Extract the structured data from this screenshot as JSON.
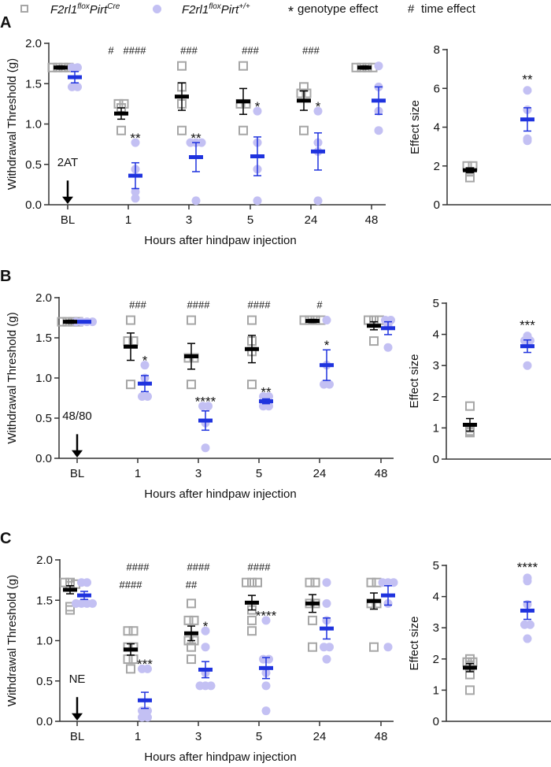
{
  "legend": {
    "series1": {
      "gene": "F2rl1",
      "gene_sup": "flox",
      "driver": "Pirt",
      "driver_sup": "Cre",
      "marker": "open-square",
      "color": "#a6a6a6"
    },
    "series2": {
      "gene": "F2rl1",
      "gene_sup": "flox",
      "driver": "Pirt",
      "driver_sup": "+/+",
      "marker": "filled-circle",
      "color": "#c3c0f3"
    },
    "genotype": {
      "symbol": "*",
      "label": "genotype effect"
    },
    "time": {
      "symbol": "#",
      "label": "time effect"
    }
  },
  "colors": {
    "cre_mean": "#000000",
    "wt_mean": "#1f33de",
    "cre_points": "#a6a6a6",
    "wt_points": "#c3c0f3",
    "wt_hash": "#1f33de"
  },
  "chart_data": [
    {
      "panel": "A",
      "type": "scatter",
      "stimulus": "2AT",
      "ylabel": "Withdrawal Threshold (g)",
      "xlabel": "Hours after hindpaw injection",
      "categories": [
        "BL",
        "1",
        "3",
        "5",
        "24",
        "48"
      ],
      "ylim": [
        0,
        2
      ],
      "yticks": [
        "0.0",
        "0.5",
        "1.0",
        "1.5",
        "2.0"
      ],
      "series": [
        {
          "name": "F2rl1floxPirtCre",
          "means": [
            1.7,
            1.13,
            1.34,
            1.28,
            1.29,
            1.7
          ],
          "sem": [
            0.02,
            0.07,
            0.17,
            0.16,
            0.12,
            0.02
          ],
          "points": [
            [
              1.7,
              1.7,
              1.7,
              1.7
            ],
            [
              1.25,
              1.25,
              1.2,
              0.92
            ],
            [
              1.72,
              1.46,
              1.25,
              0.92
            ],
            [
              1.72,
              1.25,
              1.25,
              0.92
            ],
            [
              1.46,
              1.38,
              1.38,
              0.92
            ],
            [
              1.7,
              1.7,
              1.7,
              1.7
            ]
          ]
        },
        {
          "name": "F2rl1floxPirt+/+",
          "means": [
            1.58,
            0.36,
            0.59,
            0.6,
            0.66,
            1.29
          ],
          "sem": [
            0.07,
            0.16,
            0.18,
            0.24,
            0.23,
            0.17
          ],
          "points": [
            [
              1.7,
              1.7,
              1.46,
              1.46
            ],
            [
              0.77,
              0.44,
              0.16,
              0.08
            ],
            [
              0.77,
              0.77,
              0.77,
              0.05
            ],
            [
              1.16,
              0.77,
              0.44,
              0.05
            ],
            [
              1.16,
              0.77,
              0.66,
              0.05
            ],
            [
              1.72,
              1.46,
              1.16,
              0.92
            ]
          ]
        }
      ],
      "annotations": {
        "time_cre": [
          "",
          "#",
          "",
          "",
          "",
          ""
        ],
        "time_wt": [
          "",
          "####",
          "###",
          "###",
          "###",
          ""
        ],
        "genotype": [
          "",
          "**",
          "**",
          "*",
          "*",
          ""
        ]
      }
    },
    {
      "panel": "A-effect",
      "type": "scatter",
      "ylabel": "Effect size",
      "ylim": [
        0,
        8
      ],
      "yticks": [
        "0",
        "2",
        "4",
        "6",
        "8"
      ],
      "series": [
        {
          "name": "F2rl1floxPirtCre",
          "mean": 1.78,
          "sem": 0.12,
          "points": [
            2.0,
            2.0,
            1.7,
            1.4
          ]
        },
        {
          "name": "F2rl1floxPirt+/+",
          "mean": 4.4,
          "sem": 0.6,
          "points": [
            5.9,
            4.9,
            3.4,
            3.3
          ]
        }
      ],
      "annotation": "**"
    },
    {
      "panel": "B",
      "type": "scatter",
      "stimulus": "48/80",
      "ylabel": "Withdrawal Threshold (g)",
      "xlabel": "Hours after hindpaw injection",
      "categories": [
        "BL",
        "1",
        "3",
        "5",
        "24",
        "48"
      ],
      "ylim": [
        0,
        2
      ],
      "yticks": [
        "0.0",
        "0.5",
        "1.0",
        "1.5",
        "2.0"
      ],
      "series": [
        {
          "name": "F2rl1floxPirtCre",
          "means": [
            1.7,
            1.39,
            1.27,
            1.36,
            1.71,
            1.65
          ],
          "sem": [
            0.02,
            0.17,
            0.16,
            0.17,
            0.02,
            0.05
          ],
          "points": [
            [
              1.7,
              1.7,
              1.7,
              1.7
            ],
            [
              1.72,
              1.46,
              1.46,
              0.92
            ],
            [
              1.72,
              1.25,
              1.25,
              0.92
            ],
            [
              1.72,
              1.46,
              1.33,
              0.92
            ],
            [
              1.72,
              1.72,
              1.72,
              1.72
            ],
            [
              1.72,
              1.72,
              1.72,
              1.46
            ]
          ]
        },
        {
          "name": "F2rl1floxPirt+/+",
          "means": [
            1.7,
            0.93,
            0.47,
            0.71,
            1.16,
            1.62
          ],
          "sem": [
            0.01,
            0.1,
            0.12,
            0.03,
            0.19,
            0.08
          ],
          "points": [
            [
              1.7,
              1.7,
              1.7,
              1.7
            ],
            [
              1.16,
              1.0,
              0.77,
              0.77
            ],
            [
              0.65,
              0.65,
              0.44,
              0.13
            ],
            [
              0.77,
              0.77,
              0.65,
              0.65
            ],
            [
              1.72,
              1.16,
              0.92,
              0.92
            ],
            [
              1.72,
              1.72,
              1.66,
              1.38
            ]
          ]
        }
      ],
      "annotations": {
        "time_cre": [
          "",
          "",
          "",
          "",
          "",
          ""
        ],
        "time_wt": [
          "",
          "###",
          "####",
          "####",
          "#",
          ""
        ],
        "genotype": [
          "",
          "*",
          "****",
          "**",
          "*",
          ""
        ]
      }
    },
    {
      "panel": "B-effect",
      "type": "scatter",
      "ylabel": "Effect size",
      "ylim": [
        0,
        5
      ],
      "yticks": [
        "0",
        "1",
        "2",
        "3",
        "4",
        "5"
      ],
      "series": [
        {
          "name": "F2rl1floxPirtCre",
          "mean": 1.1,
          "sem": 0.2,
          "points": [
            1.7,
            1.0,
            0.9,
            0.85
          ]
        },
        {
          "name": "F2rl1floxPirt+/+",
          "mean": 3.62,
          "sem": 0.2,
          "points": [
            3.95,
            3.8,
            3.8,
            3.0
          ]
        }
      ],
      "annotation": "***"
    },
    {
      "panel": "C",
      "type": "scatter",
      "stimulus": "NE",
      "ylabel": "Withdrawal Threshold (g)",
      "xlabel": "Hours after hindpaw injection",
      "categories": [
        "BL",
        "1",
        "3",
        "5",
        "24",
        "48"
      ],
      "ylim": [
        0,
        2
      ],
      "yticks": [
        "0.0",
        "0.5",
        "1.0",
        "1.5",
        "2.0"
      ],
      "series": [
        {
          "name": "F2rl1floxPirtCre",
          "means": [
            1.63,
            0.89,
            1.09,
            1.47,
            1.46,
            1.49
          ],
          "sem": [
            0.05,
            0.07,
            0.09,
            0.09,
            0.11,
            0.1
          ],
          "points": [
            [
              1.72,
              1.72,
              1.7,
              1.68,
              1.42,
              1.38
            ],
            [
              1.12,
              1.12,
              0.92,
              0.92,
              0.77,
              0.77,
              0.65
            ],
            [
              1.46,
              1.25,
              1.25,
              1.0,
              1.0,
              0.92,
              0.77
            ],
            [
              1.72,
              1.72,
              1.72,
              1.38,
              1.25,
              1.12
            ],
            [
              1.72,
              1.72,
              1.46,
              1.46,
              1.25,
              0.92
            ],
            [
              1.72,
              1.72,
              1.46,
              1.46,
              0.92
            ]
          ]
        },
        {
          "name": "F2rl1floxPirt+/+",
          "means": [
            1.56,
            0.26,
            0.64,
            0.66,
            1.15,
            1.56
          ],
          "sem": [
            0.05,
            0.1,
            0.1,
            0.13,
            0.13,
            0.12
          ],
          "points": [
            [
              1.72,
              1.72,
              1.46,
              1.46,
              1.46,
              1.46
            ],
            [
              0.65,
              0.65,
              0.13,
              0.13,
              0.05,
              0.05
            ],
            [
              1.12,
              0.92,
              0.6,
              0.44,
              0.44,
              0.44
            ],
            [
              1.25,
              0.77,
              0.77,
              0.6,
              0.44,
              0.13
            ],
            [
              1.72,
              1.46,
              1.25,
              0.92,
              0.92,
              0.77
            ],
            [
              1.72,
              1.72,
              1.72,
              1.46,
              0.92
            ]
          ]
        }
      ],
      "annotations": {
        "time_cre": [
          "",
          "####",
          "##",
          "",
          "",
          ""
        ],
        "time_wt": [
          "",
          "####",
          "####",
          "####",
          "",
          ""
        ],
        "genotype": [
          "",
          "***",
          "*",
          "****",
          "",
          ""
        ]
      }
    },
    {
      "panel": "C-effect",
      "type": "scatter",
      "ylabel": "Effect size",
      "ylim": [
        0,
        5
      ],
      "yticks": [
        "0",
        "1",
        "2",
        "3",
        "4",
        "5"
      ],
      "series": [
        {
          "name": "F2rl1floxPirtCre",
          "mean": 1.72,
          "sem": 0.13,
          "points": [
            2.0,
            1.9,
            1.9,
            1.8,
            1.5,
            1.0
          ]
        },
        {
          "name": "F2rl1floxPirt+/+",
          "mean": 3.55,
          "sem": 0.28,
          "points": [
            4.6,
            4.5,
            3.75,
            3.1,
            3.1,
            2.65
          ]
        }
      ],
      "annotation": "****"
    }
  ]
}
